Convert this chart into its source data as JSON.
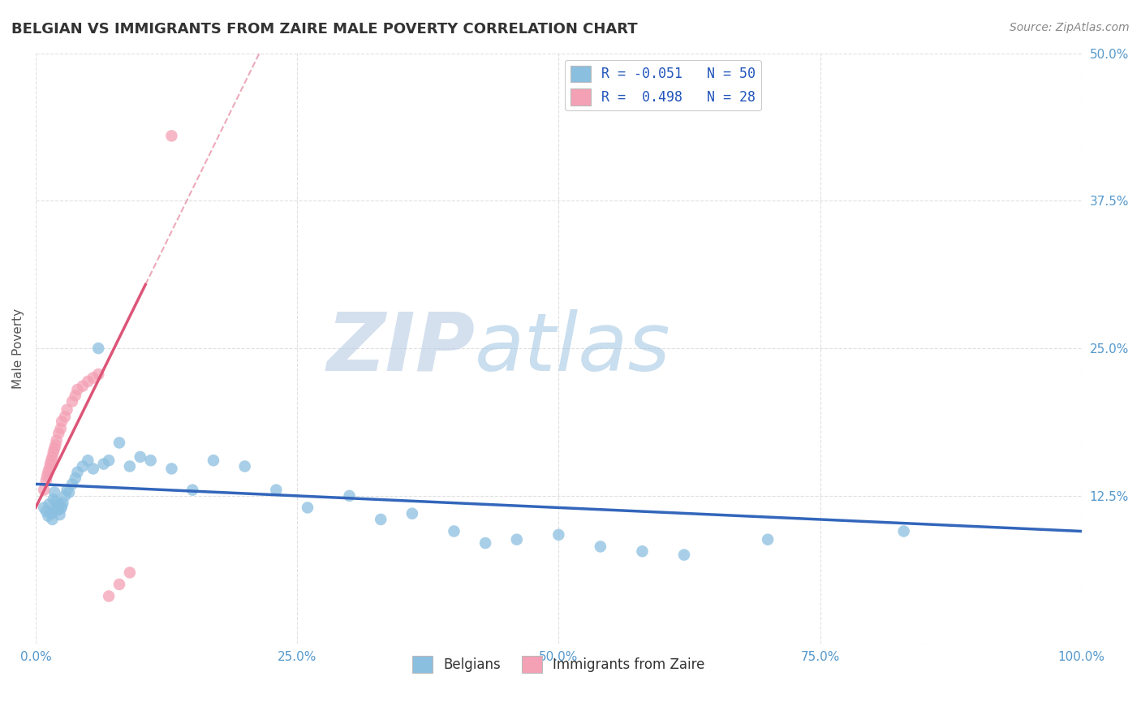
{
  "title": "BELGIAN VS IMMIGRANTS FROM ZAIRE MALE POVERTY CORRELATION CHART",
  "source_text": "Source: ZipAtlas.com",
  "xlabel": "",
  "ylabel": "Male Poverty",
  "xlim": [
    0.0,
    1.0
  ],
  "ylim": [
    0.0,
    0.5
  ],
  "xticks": [
    0.0,
    0.25,
    0.5,
    0.75,
    1.0
  ],
  "xtick_labels": [
    "0.0%",
    "25.0%",
    "50.0%",
    "75.0%",
    "100.0%"
  ],
  "yticks": [
    0.0,
    0.125,
    0.25,
    0.375,
    0.5
  ],
  "ytick_labels": [
    "",
    "12.5%",
    "25.0%",
    "37.5%",
    "50.0%"
  ],
  "legend_blue_label": "R = -0.051   N = 50",
  "legend_pink_label": "R =  0.498   N = 28",
  "blue_color": "#8bbfe0",
  "pink_color": "#f4a0b5",
  "blue_line_color": "#3366bb",
  "pink_line_color": "#dd5577",
  "blue_scatter": {
    "x": [
      0.008,
      0.01,
      0.012,
      0.013,
      0.015,
      0.016,
      0.017,
      0.018,
      0.019,
      0.02,
      0.021,
      0.022,
      0.023,
      0.024,
      0.025,
      0.026,
      0.028,
      0.03,
      0.032,
      0.035,
      0.038,
      0.04,
      0.045,
      0.05,
      0.055,
      0.06,
      0.065,
      0.07,
      0.08,
      0.09,
      0.1,
      0.11,
      0.13,
      0.15,
      0.17,
      0.2,
      0.23,
      0.26,
      0.3,
      0.33,
      0.36,
      0.4,
      0.43,
      0.46,
      0.5,
      0.54,
      0.58,
      0.62,
      0.7,
      0.83
    ],
    "y": [
      0.115,
      0.112,
      0.108,
      0.118,
      0.11,
      0.105,
      0.122,
      0.128,
      0.115,
      0.12,
      0.113,
      0.117,
      0.109,
      0.114,
      0.116,
      0.119,
      0.125,
      0.13,
      0.128,
      0.135,
      0.14,
      0.145,
      0.15,
      0.155,
      0.148,
      0.25,
      0.152,
      0.155,
      0.17,
      0.15,
      0.158,
      0.155,
      0.148,
      0.13,
      0.155,
      0.15,
      0.13,
      0.115,
      0.125,
      0.105,
      0.11,
      0.095,
      0.085,
      0.088,
      0.092,
      0.082,
      0.078,
      0.075,
      0.088,
      0.095
    ]
  },
  "pink_scatter": {
    "x": [
      0.008,
      0.01,
      0.011,
      0.012,
      0.013,
      0.014,
      0.015,
      0.016,
      0.017,
      0.018,
      0.019,
      0.02,
      0.022,
      0.024,
      0.025,
      0.028,
      0.03,
      0.035,
      0.038,
      0.04,
      0.045,
      0.05,
      0.055,
      0.06,
      0.07,
      0.08,
      0.09,
      0.13
    ],
    "y": [
      0.13,
      0.138,
      0.142,
      0.145,
      0.148,
      0.152,
      0.155,
      0.158,
      0.162,
      0.165,
      0.168,
      0.172,
      0.178,
      0.182,
      0.188,
      0.192,
      0.198,
      0.205,
      0.21,
      0.215,
      0.218,
      0.222,
      0.225,
      0.228,
      0.04,
      0.05,
      0.06,
      0.43
    ]
  },
  "watermark": "ZIPatlas",
  "watermark_color": "#ccdaee",
  "background_color": "#ffffff",
  "grid_color": "#cccccc",
  "title_fontsize": 13,
  "axis_label_fontsize": 11,
  "tick_fontsize": 11,
  "tick_color": "#5599cc"
}
